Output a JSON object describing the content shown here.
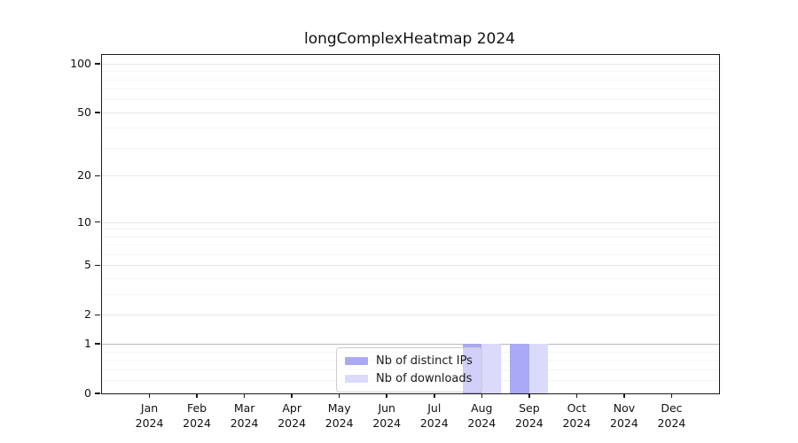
{
  "chart_data": {
    "type": "bar",
    "title": "longComplexHeatmap 2024",
    "categories": [
      "Jan 2024",
      "Feb 2024",
      "Mar 2024",
      "Apr 2024",
      "May 2024",
      "Jun 2024",
      "Jul 2024",
      "Aug 2024",
      "Sep 2024",
      "Oct 2024",
      "Nov 2024",
      "Dec 2024"
    ],
    "series": [
      {
        "name": "Nb of distinct IPs",
        "color": "#a9a9f6",
        "values": [
          0,
          0,
          0,
          0,
          0,
          0,
          0,
          1,
          1,
          0,
          0,
          0
        ]
      },
      {
        "name": "Nb of downloads",
        "color": "#dadafb",
        "values": [
          0,
          0,
          0,
          0,
          0,
          0,
          0,
          1,
          1,
          0,
          0,
          0
        ]
      }
    ],
    "yscale": "log1p",
    "ylim": [
      0,
      113
    ],
    "y_major_ticks": [
      0,
      1,
      2,
      5,
      10,
      20,
      50,
      100
    ],
    "y_minor_ticks": [
      0.2,
      0.4,
      0.6,
      0.8,
      3,
      4,
      6,
      7,
      8,
      9,
      30,
      40,
      60,
      70,
      80,
      90
    ],
    "emphasized_gridline_value": 1,
    "grid": "horizontal-only",
    "legend_position": "lower-center-inside",
    "colors": {
      "spine": "#1a1a1a",
      "grid_major": "#e7e7e7",
      "grid_minor": "#f4f4f4",
      "grid_emphasis": "#b9b9b9",
      "background": "#ffffff"
    }
  }
}
